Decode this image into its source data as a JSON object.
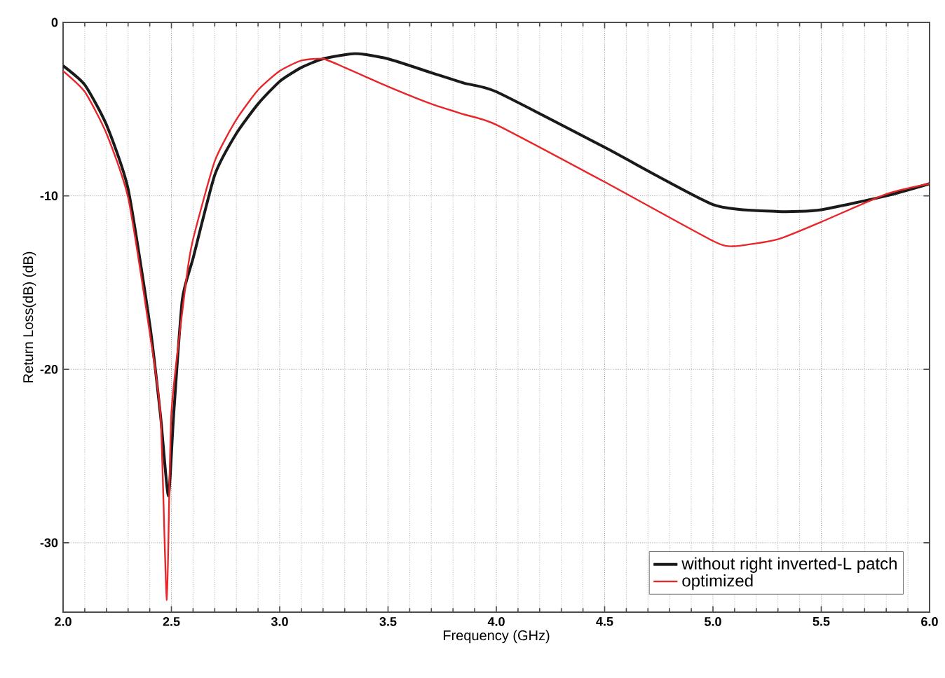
{
  "chart_data": {
    "type": "line",
    "xlabel": "Frequency (GHz)",
    "ylabel": "Return Loss(dB) (dB)",
    "xlim": [
      2.0,
      6.0
    ],
    "ylim": [
      -34,
      0
    ],
    "xticks": [
      {
        "value": 2.0,
        "label": "2.0"
      },
      {
        "value": 2.5,
        "label": "2.5"
      },
      {
        "value": 3.0,
        "label": "3.0"
      },
      {
        "value": 3.5,
        "label": "3.5"
      },
      {
        "value": 4.0,
        "label": "4.0"
      },
      {
        "value": 4.5,
        "label": "4.5"
      },
      {
        "value": 5.0,
        "label": "5.0"
      },
      {
        "value": 5.5,
        "label": "5.5"
      },
      {
        "value": 6.0,
        "label": "6.0"
      }
    ],
    "yticks": [
      0,
      -10,
      -20,
      -30
    ],
    "grid": true,
    "legend": "bottom right",
    "series": [
      {
        "name": "without right inverted-L patch",
        "color": "#1a1a1a",
        "x": [
          2.0,
          2.1,
          2.2,
          2.3,
          2.4,
          2.45,
          2.486,
          2.51,
          2.55,
          2.6,
          2.7,
          2.8,
          2.9,
          3.0,
          3.1,
          3.2,
          3.35,
          3.5,
          3.7,
          3.85,
          4.0,
          4.5,
          5.0,
          5.3,
          5.5,
          5.8,
          6.0
        ],
        "values": [
          -2.5,
          -3.6,
          -5.9,
          -9.6,
          -17.4,
          -22.7,
          -27.3,
          -22.7,
          -16,
          -13.6,
          -8.8,
          -6.4,
          -4.7,
          -3.4,
          -2.6,
          -2.1,
          -1.8,
          -2.1,
          -2.9,
          -3.5,
          -4.0,
          -7.2,
          -10.5,
          -10.9,
          -10.8,
          -10.0,
          -9.3
        ]
      },
      {
        "name": "optimized",
        "color": "#e8262a",
        "x": [
          2.0,
          2.1,
          2.2,
          2.3,
          2.4,
          2.45,
          2.479,
          2.5,
          2.57,
          2.6,
          2.7,
          2.8,
          2.9,
          3.0,
          3.1,
          3.2,
          3.3,
          3.5,
          3.7,
          3.85,
          4.0,
          4.5,
          5.0,
          5.1,
          5.3,
          5.5,
          5.8,
          6.0
        ],
        "values": [
          -2.8,
          -4.0,
          -6.4,
          -10.1,
          -17.9,
          -22.7,
          -33.3,
          -22.5,
          -14.7,
          -12.5,
          -8.0,
          -5.6,
          -3.9,
          -2.8,
          -2.2,
          -2.1,
          -2.6,
          -3.7,
          -4.7,
          -5.3,
          -5.9,
          -9.2,
          -12.6,
          -12.9,
          -12.5,
          -11.5,
          -9.9,
          -9.3
        ]
      }
    ]
  }
}
